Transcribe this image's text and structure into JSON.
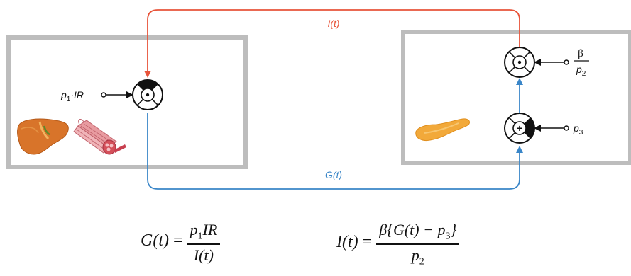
{
  "signals": {
    "insulin": "I(t)",
    "glucose": "G(t)"
  },
  "inputs": {
    "left_input_main": "p",
    "left_input_sub": "1",
    "left_input_rest": "·IR",
    "right_top_num": "β",
    "right_top_den_main": "p",
    "right_top_den_sub": "2",
    "right_bottom_main": "p",
    "right_bottom_sub": "3"
  },
  "junctions": {
    "left": "⊙",
    "right_top": "⊙",
    "right_bottom": "+"
  },
  "equations": {
    "g": {
      "lhs": "G(t)",
      "num_main": "p",
      "num_sub": "1",
      "num_rest": "IR",
      "den": "I(t)"
    },
    "i": {
      "lhs": "I(t)",
      "num_pre": "β{G(t) − p",
      "num_sub": "3",
      "num_post": "}",
      "den_main": "p",
      "den_sub": "2"
    }
  },
  "colors": {
    "insulin": "#e8543a",
    "glucose": "#3a86c8",
    "box": "#bdbdbd"
  },
  "icons": [
    "liver-icon",
    "muscle-icon",
    "pancreas-icon"
  ]
}
